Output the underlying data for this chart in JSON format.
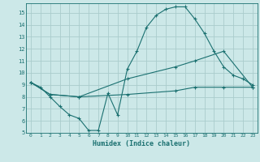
{
  "xlabel": "Humidex (Indice chaleur)",
  "bg_color": "#cce8e8",
  "grid_color": "#aacccc",
  "line_color": "#1a7070",
  "xlim": [
    -0.5,
    23.5
  ],
  "ylim": [
    5,
    15.8
  ],
  "xticks": [
    0,
    1,
    2,
    3,
    4,
    5,
    6,
    7,
    8,
    9,
    10,
    11,
    12,
    13,
    14,
    15,
    16,
    17,
    18,
    19,
    20,
    21,
    22,
    23
  ],
  "yticks": [
    5,
    6,
    7,
    8,
    9,
    10,
    11,
    12,
    13,
    14,
    15
  ],
  "line1_x": [
    0,
    1,
    2,
    3,
    4,
    5,
    6,
    7,
    8,
    9,
    10,
    11,
    12,
    13,
    14,
    15,
    16,
    17,
    18,
    19,
    20,
    21,
    22,
    23
  ],
  "line1_y": [
    9.2,
    8.8,
    8.0,
    7.2,
    6.5,
    6.2,
    5.2,
    5.2,
    8.3,
    6.5,
    10.3,
    11.8,
    13.8,
    14.8,
    15.3,
    15.5,
    15.5,
    14.5,
    13.3,
    11.8,
    10.5,
    9.8,
    9.5,
    9.0
  ],
  "line2_x": [
    0,
    2,
    5,
    10,
    15,
    17,
    20,
    23
  ],
  "line2_y": [
    9.2,
    8.2,
    8.0,
    9.5,
    10.5,
    11.0,
    11.8,
    8.8
  ],
  "line3_x": [
    0,
    2,
    5,
    10,
    15,
    17,
    20,
    23
  ],
  "line3_y": [
    9.2,
    8.2,
    8.0,
    8.2,
    8.5,
    8.8,
    8.8,
    8.8
  ]
}
